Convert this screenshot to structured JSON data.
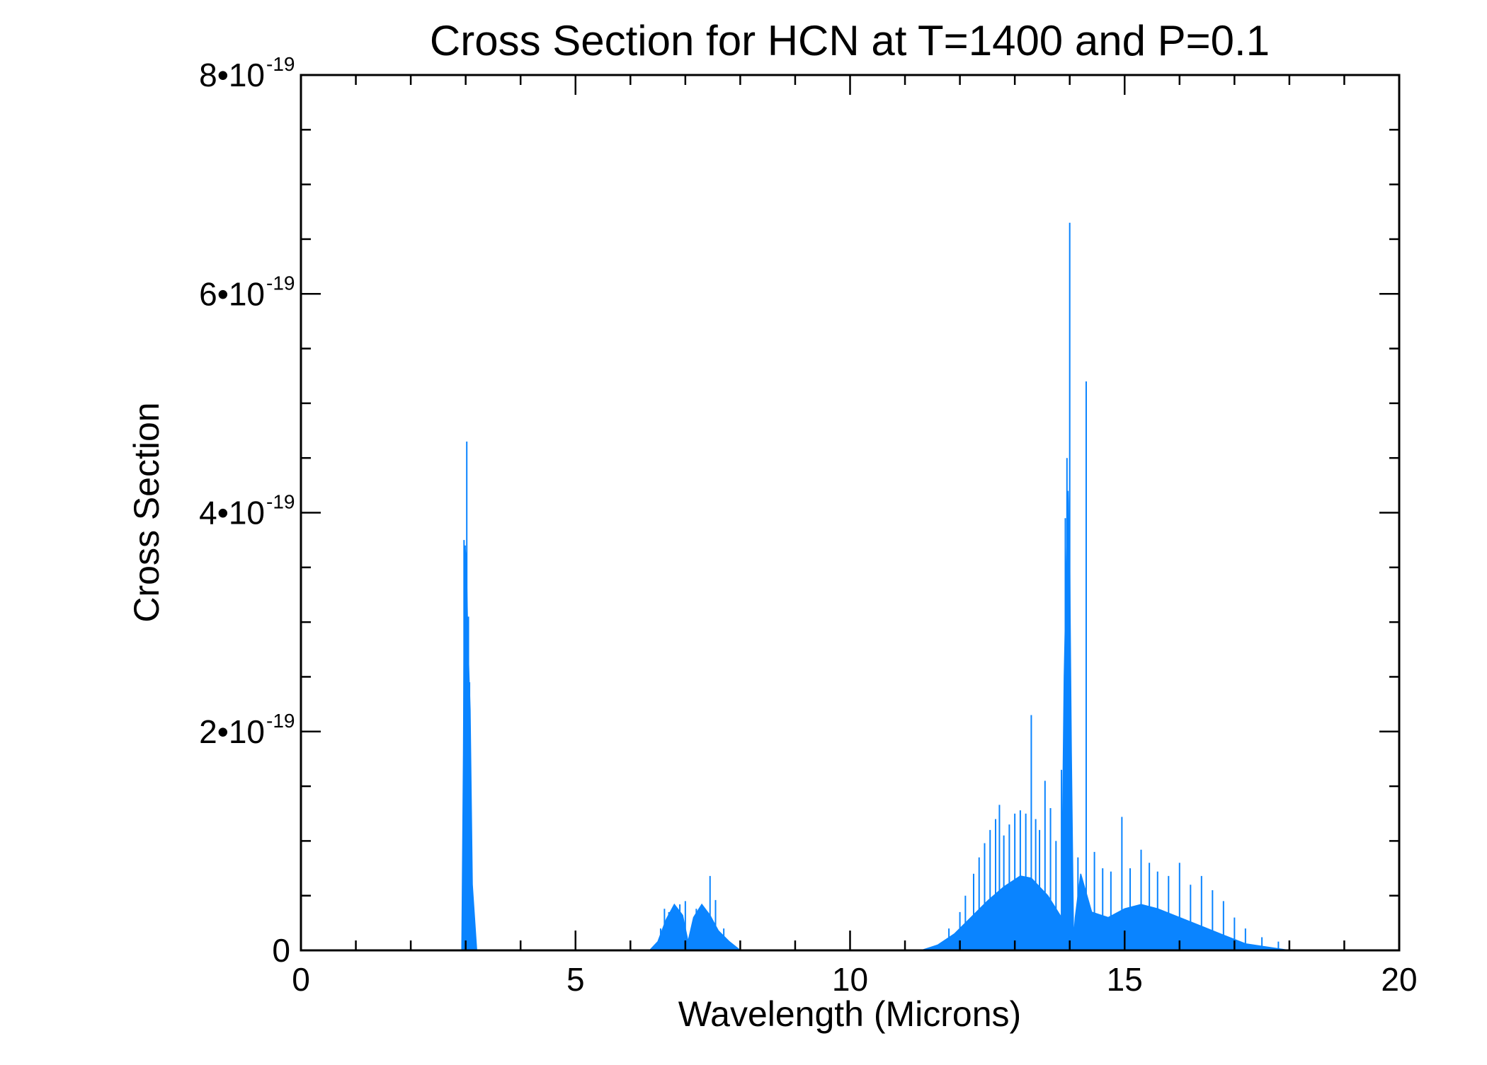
{
  "chart_data": {
    "type": "line",
    "title": "Cross Section for HCN at T=1400 and P=0.1",
    "xlabel": "Wavelength (Microns)",
    "ylabel": "Cross Section",
    "xlim": [
      0,
      20
    ],
    "ylim": [
      0,
      8e-19
    ],
    "y_unit_scale": 1e-19,
    "grid": false,
    "legend": "none",
    "series_color": "#0a84ff",
    "x_ticks": [
      {
        "value": 0,
        "label": "0"
      },
      {
        "value": 5,
        "label": "5"
      },
      {
        "value": 10,
        "label": "10"
      },
      {
        "value": 15,
        "label": "15"
      },
      {
        "value": 20,
        "label": "20"
      }
    ],
    "y_ticks": [
      {
        "value": 0,
        "mantissa": "0",
        "exp": ""
      },
      {
        "value": 2,
        "mantissa": "2•10",
        "exp": "-19"
      },
      {
        "value": 4,
        "mantissa": "4•10",
        "exp": "-19"
      },
      {
        "value": 6,
        "mantissa": "6•10",
        "exp": "-19"
      },
      {
        "value": 8,
        "mantissa": "8•10",
        "exp": "-19"
      }
    ],
    "envelope": [
      [
        0.5,
        0
      ],
      [
        2.93,
        0
      ],
      [
        2.96,
        1.8
      ],
      [
        2.98,
        3.7
      ],
      [
        3.01,
        3.6
      ],
      [
        3.04,
        2.8
      ],
      [
        3.08,
        2.2
      ],
      [
        3.12,
        0.6
      ],
      [
        3.2,
        0
      ],
      [
        6.35,
        0
      ],
      [
        6.5,
        0.08
      ],
      [
        6.65,
        0.28
      ],
      [
        6.8,
        0.42
      ],
      [
        6.95,
        0.32
      ],
      [
        7.05,
        0.08
      ],
      [
        7.15,
        0.3
      ],
      [
        7.3,
        0.42
      ],
      [
        7.45,
        0.32
      ],
      [
        7.6,
        0.18
      ],
      [
        7.8,
        0.08
      ],
      [
        8.0,
        0
      ],
      [
        11.3,
        0
      ],
      [
        11.6,
        0.05
      ],
      [
        11.9,
        0.15
      ],
      [
        12.2,
        0.3
      ],
      [
        12.5,
        0.45
      ],
      [
        12.8,
        0.58
      ],
      [
        13.1,
        0.68
      ],
      [
        13.3,
        0.66
      ],
      [
        13.6,
        0.5
      ],
      [
        13.85,
        0.3
      ],
      [
        13.9,
        2.5
      ],
      [
        13.97,
        4.2
      ],
      [
        14.0,
        3.5
      ],
      [
        14.03,
        1.8
      ],
      [
        14.07,
        0.1
      ],
      [
        14.1,
        0.3
      ],
      [
        14.2,
        0.7
      ],
      [
        14.4,
        0.35
      ],
      [
        14.7,
        0.3
      ],
      [
        15.0,
        0.38
      ],
      [
        15.3,
        0.42
      ],
      [
        15.6,
        0.38
      ],
      [
        16.0,
        0.3
      ],
      [
        16.4,
        0.22
      ],
      [
        16.8,
        0.14
      ],
      [
        17.2,
        0.06
      ],
      [
        17.6,
        0.03
      ],
      [
        18.0,
        0
      ],
      [
        20,
        0
      ]
    ],
    "spikes": [
      [
        2.97,
        3.75
      ],
      [
        2.99,
        3.7
      ],
      [
        3.02,
        4.65
      ],
      [
        3.05,
        3.05
      ],
      [
        3.07,
        2.45
      ],
      [
        6.55,
        0.2
      ],
      [
        6.62,
        0.38
      ],
      [
        6.7,
        0.35
      ],
      [
        6.9,
        0.42
      ],
      [
        7.0,
        0.45
      ],
      [
        7.2,
        0.38
      ],
      [
        7.45,
        0.68
      ],
      [
        7.55,
        0.46
      ],
      [
        7.7,
        0.2
      ],
      [
        11.8,
        0.2
      ],
      [
        12.0,
        0.35
      ],
      [
        12.1,
        0.5
      ],
      [
        12.25,
        0.7
      ],
      [
        12.35,
        0.85
      ],
      [
        12.45,
        0.98
      ],
      [
        12.55,
        1.1
      ],
      [
        12.65,
        1.2
      ],
      [
        12.72,
        1.33
      ],
      [
        12.8,
        1.05
      ],
      [
        12.9,
        1.15
      ],
      [
        13.0,
        1.25
      ],
      [
        13.1,
        1.28
      ],
      [
        13.2,
        1.25
      ],
      [
        13.3,
        2.15
      ],
      [
        13.38,
        1.2
      ],
      [
        13.45,
        1.1
      ],
      [
        13.55,
        1.55
      ],
      [
        13.65,
        1.3
      ],
      [
        13.75,
        1.0
      ],
      [
        13.85,
        1.65
      ],
      [
        13.92,
        3.95
      ],
      [
        13.95,
        4.5
      ],
      [
        14.0,
        6.65
      ],
      [
        14.3,
        5.2
      ],
      [
        14.15,
        0.85
      ],
      [
        14.45,
        0.9
      ],
      [
        14.6,
        0.75
      ],
      [
        14.75,
        0.72
      ],
      [
        14.95,
        1.22
      ],
      [
        15.1,
        0.75
      ],
      [
        15.3,
        0.92
      ],
      [
        15.45,
        0.8
      ],
      [
        15.6,
        0.72
      ],
      [
        15.8,
        0.68
      ],
      [
        16.0,
        0.8
      ],
      [
        16.2,
        0.6
      ],
      [
        16.4,
        0.68
      ],
      [
        16.6,
        0.55
      ],
      [
        16.8,
        0.45
      ],
      [
        17.0,
        0.3
      ],
      [
        17.2,
        0.2
      ],
      [
        17.5,
        0.12
      ],
      [
        17.8,
        0.08
      ]
    ]
  }
}
